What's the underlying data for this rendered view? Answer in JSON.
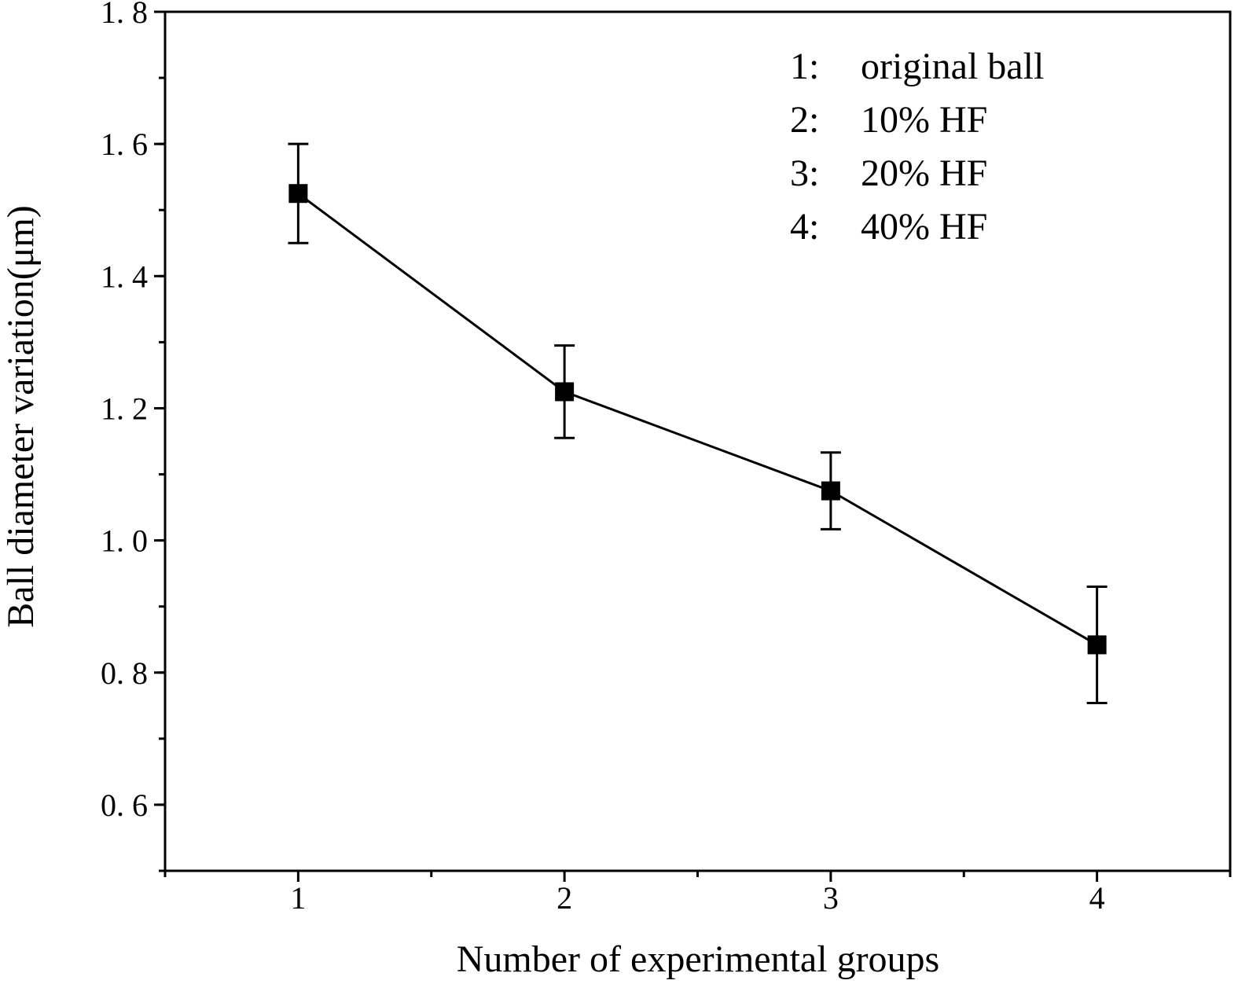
{
  "chart_data": {
    "type": "line",
    "title": "",
    "xlabel": "Number of experimental groups",
    "ylabel": "Ball diameter variation(μm)",
    "xlim": [
      0.5,
      4.5
    ],
    "ylim": [
      0.5,
      1.8
    ],
    "x_ticks": [
      1,
      2,
      3,
      4
    ],
    "x_tick_labels": [
      "1",
      "2",
      "3",
      "4"
    ],
    "y_ticks": [
      0.6,
      0.8,
      1.0,
      1.2,
      1.4,
      1.6,
      1.8
    ],
    "y_tick_labels": [
      "0. 6",
      "0. 8",
      "1. 0",
      "1. 2",
      "1. 4",
      "1. 6",
      "1. 8"
    ],
    "grid": false,
    "legend_placement": "top-right",
    "legend": [
      {
        "key": "1:",
        "label": "original ball"
      },
      {
        "key": "2:",
        "label": "10% HF"
      },
      {
        "key": "3:",
        "label": "20% HF"
      },
      {
        "key": "4:",
        "label": "40% HF"
      }
    ],
    "series": [
      {
        "name": "Ball diameter variation",
        "color": "#000000",
        "marker": "square",
        "x": [
          1,
          2,
          3,
          4
        ],
        "y": [
          1.525,
          1.225,
          1.075,
          0.842
        ],
        "error": [
          0.075,
          0.07,
          0.058,
          0.088
        ]
      }
    ]
  }
}
